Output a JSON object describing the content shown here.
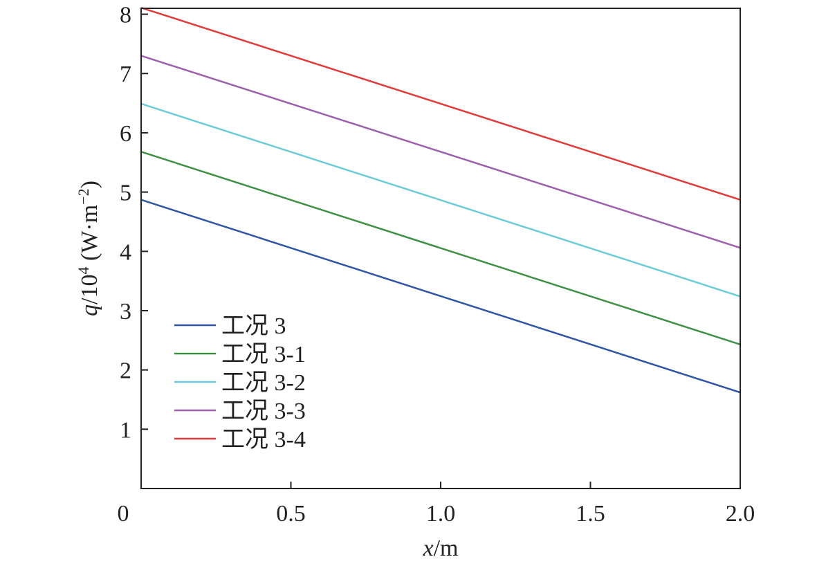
{
  "chart_data": {
    "type": "line",
    "xlabel": {
      "var": "x",
      "unit": "/m"
    },
    "ylabel": {
      "var": "q",
      "rest": "/10",
      "exp": "4",
      "unit_open": " (W·m",
      "unit_exp": "−2",
      "unit_close": ")"
    },
    "xlim": [
      0,
      2.0
    ],
    "ylim": [
      0,
      8.1
    ],
    "x_ticks": [
      0,
      0.5,
      1.0,
      1.5,
      2.0
    ],
    "x_tick_labels": [
      "0",
      "0.5",
      "1.0",
      "1.5",
      "2.0"
    ],
    "y_ticks": [
      1,
      2,
      3,
      4,
      5,
      6,
      7,
      8
    ],
    "y_tick_labels": [
      "1",
      "2",
      "3",
      "4",
      "5",
      "6",
      "7",
      "8"
    ],
    "grid": false,
    "legend_position": "lower-left",
    "series": [
      {
        "name": "工况 3",
        "color": "#2f55a4",
        "x": [
          0,
          2.0
        ],
        "y": [
          4.87,
          1.62
        ]
      },
      {
        "name": "工况 3-1",
        "color": "#3f8f45",
        "x": [
          0,
          2.0
        ],
        "y": [
          5.68,
          2.43
        ]
      },
      {
        "name": "工况 3-2",
        "color": "#6ccbd7",
        "x": [
          0,
          2.0
        ],
        "y": [
          6.49,
          3.24
        ]
      },
      {
        "name": "工况 3-3",
        "color": "#9c5fab",
        "x": [
          0,
          2.0
        ],
        "y": [
          7.3,
          4.06
        ]
      },
      {
        "name": "工况 3-4",
        "color": "#e03a3a",
        "x": [
          0,
          2.0
        ],
        "y": [
          8.11,
          4.87
        ]
      }
    ]
  }
}
